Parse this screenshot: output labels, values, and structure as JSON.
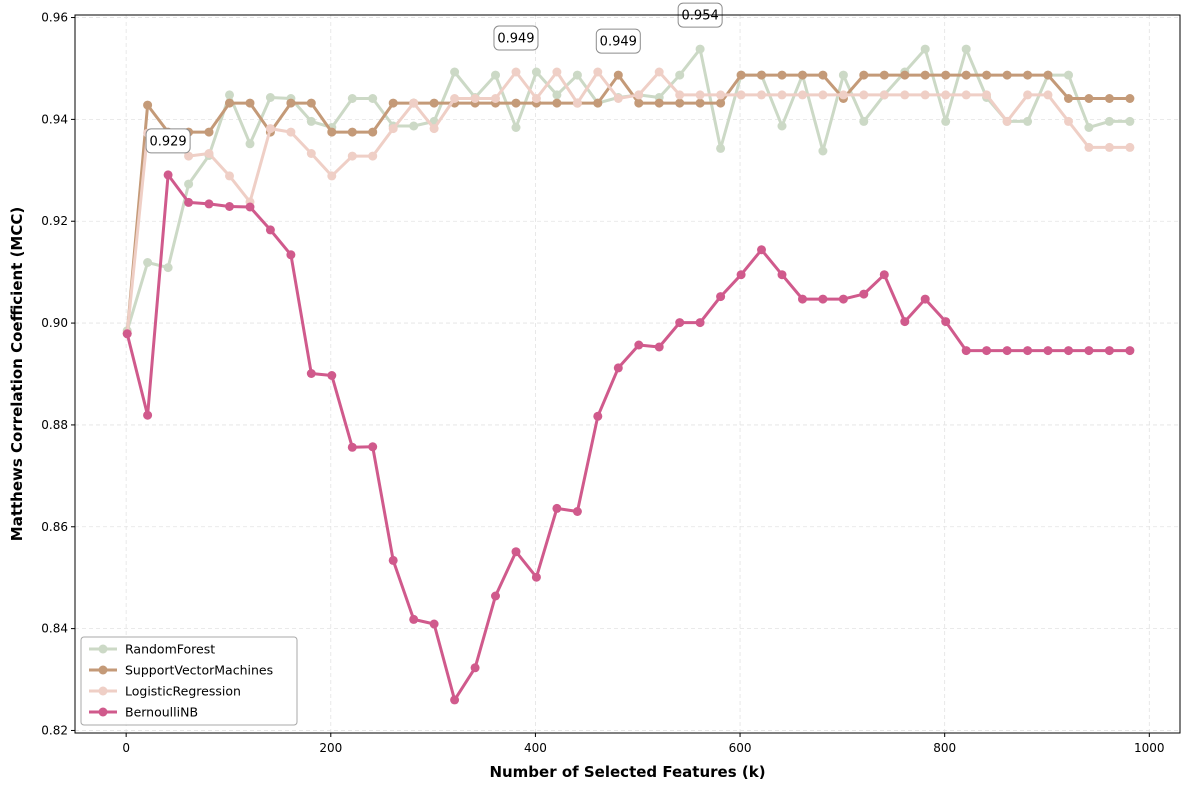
{
  "chart_data": {
    "type": "line",
    "xlabel": "Number of Selected Features (k)",
    "ylabel": "Matthews Correlation Coefficient (MCC)",
    "xlim": [
      -50,
      1030
    ],
    "ylim": [
      0.8195,
      0.9605
    ],
    "xticks": [
      0,
      200,
      400,
      600,
      800,
      1000
    ],
    "yticks": [
      0.82,
      0.84,
      0.86,
      0.88,
      0.9,
      0.92,
      0.94,
      0.96
    ],
    "ytick_labels": [
      "0.82",
      "0.84",
      "0.86",
      "0.88",
      "0.90",
      "0.92",
      "0.94",
      "0.96"
    ],
    "xtick_labels": [
      "0",
      "200",
      "400",
      "600",
      "800",
      "1000"
    ],
    "grid": true,
    "legend_position": "lower-left",
    "x": [
      1,
      21,
      41,
      61,
      81,
      101,
      121,
      141,
      161,
      181,
      201,
      221,
      241,
      261,
      281,
      301,
      321,
      341,
      361,
      381,
      401,
      421,
      441,
      461,
      481,
      501,
      521,
      541,
      561,
      581,
      601,
      621,
      641,
      661,
      681,
      701,
      721,
      741,
      761,
      781,
      801,
      821,
      841,
      861,
      881,
      901,
      921,
      941,
      961,
      981
    ],
    "series": [
      {
        "name": "RandomForest",
        "color": "#ccd9c6",
        "values": [
          0.8985,
          0.9119,
          0.9109,
          0.9273,
          0.9329,
          0.9448,
          0.9352,
          0.9443,
          0.9441,
          0.9396,
          0.9384,
          0.9441,
          0.9441,
          0.9387,
          0.9387,
          0.9396,
          0.9493,
          0.9443,
          0.9487,
          0.9384,
          0.9493,
          0.9448,
          0.9487,
          0.9432,
          0.9443,
          0.9448,
          0.9443,
          0.9487,
          0.9538,
          0.9343,
          0.9487,
          0.9487,
          0.9387,
          0.9487,
          0.9338,
          0.9487,
          0.9396,
          0.9448,
          0.9493,
          0.9538,
          0.9396,
          0.9538,
          0.9443,
          0.9396,
          0.9396,
          0.9487,
          0.9487,
          0.9384,
          0.9396,
          0.9396
        ]
      },
      {
        "name": "SupportVectorMachines",
        "color": "#c49a78",
        "values": [
          0.898,
          0.9428,
          0.9375,
          0.9375,
          0.9375,
          0.9432,
          0.9432,
          0.9375,
          0.9432,
          0.9432,
          0.9375,
          0.9375,
          0.9375,
          0.9432,
          0.9432,
          0.9432,
          0.9432,
          0.9432,
          0.9432,
          0.9432,
          0.9432,
          0.9432,
          0.9432,
          0.9432,
          0.9487,
          0.9432,
          0.9432,
          0.9432,
          0.9432,
          0.9432,
          0.9487,
          0.9487,
          0.9487,
          0.9487,
          0.9487,
          0.9441,
          0.9487,
          0.9487,
          0.9487,
          0.9487,
          0.9487,
          0.9487,
          0.9487,
          0.9487,
          0.9487,
          0.9487,
          0.9441,
          0.9441,
          0.9441,
          0.9441
        ]
      },
      {
        "name": "LogisticRegression",
        "color": "#efcfc6",
        "values": [
          0.898,
          0.9373,
          0.9373,
          0.9328,
          0.9333,
          0.9289,
          0.9238,
          0.9382,
          0.9375,
          0.9333,
          0.9289,
          0.9328,
          0.9328,
          0.9382,
          0.9432,
          0.9382,
          0.9441,
          0.9441,
          0.9441,
          0.9493,
          0.9441,
          0.9493,
          0.9432,
          0.9493,
          0.9441,
          0.9448,
          0.9493,
          0.9448,
          0.9448,
          0.9448,
          0.9448,
          0.9448,
          0.9448,
          0.9448,
          0.9448,
          0.9448,
          0.9448,
          0.9448,
          0.9448,
          0.9448,
          0.9448,
          0.9448,
          0.9448,
          0.9396,
          0.9448,
          0.9448,
          0.9396,
          0.9345,
          0.9345,
          0.9345
        ]
      },
      {
        "name": "BernoulliNB",
        "color": "#d05a8c",
        "values": [
          0.8979,
          0.8819,
          0.9291,
          0.9237,
          0.9234,
          0.9229,
          0.9228,
          0.9183,
          0.9134,
          0.8901,
          0.8897,
          0.8756,
          0.8757,
          0.8534,
          0.8418,
          0.8409,
          0.826,
          0.8323,
          0.8464,
          0.8551,
          0.8501,
          0.8636,
          0.863,
          0.8817,
          0.8912,
          0.8957,
          0.8953,
          0.9001,
          0.9001,
          0.9052,
          0.9095,
          0.9144,
          0.9095,
          0.9047,
          0.9047,
          0.9047,
          0.9057,
          0.9095,
          0.9003,
          0.9047,
          0.9003,
          0.8946,
          0.8946,
          0.8946,
          0.8946,
          0.8946,
          0.8946,
          0.8946,
          0.8946,
          0.8946
        ]
      }
    ],
    "annotations": [
      {
        "text": "0.929",
        "x": 41,
        "y": 0.9291
      },
      {
        "text": "0.949",
        "x": 381,
        "y": 0.9493
      },
      {
        "text": "0.949",
        "x": 481,
        "y": 0.9487
      },
      {
        "text": "0.954",
        "x": 561,
        "y": 0.9538
      }
    ]
  }
}
